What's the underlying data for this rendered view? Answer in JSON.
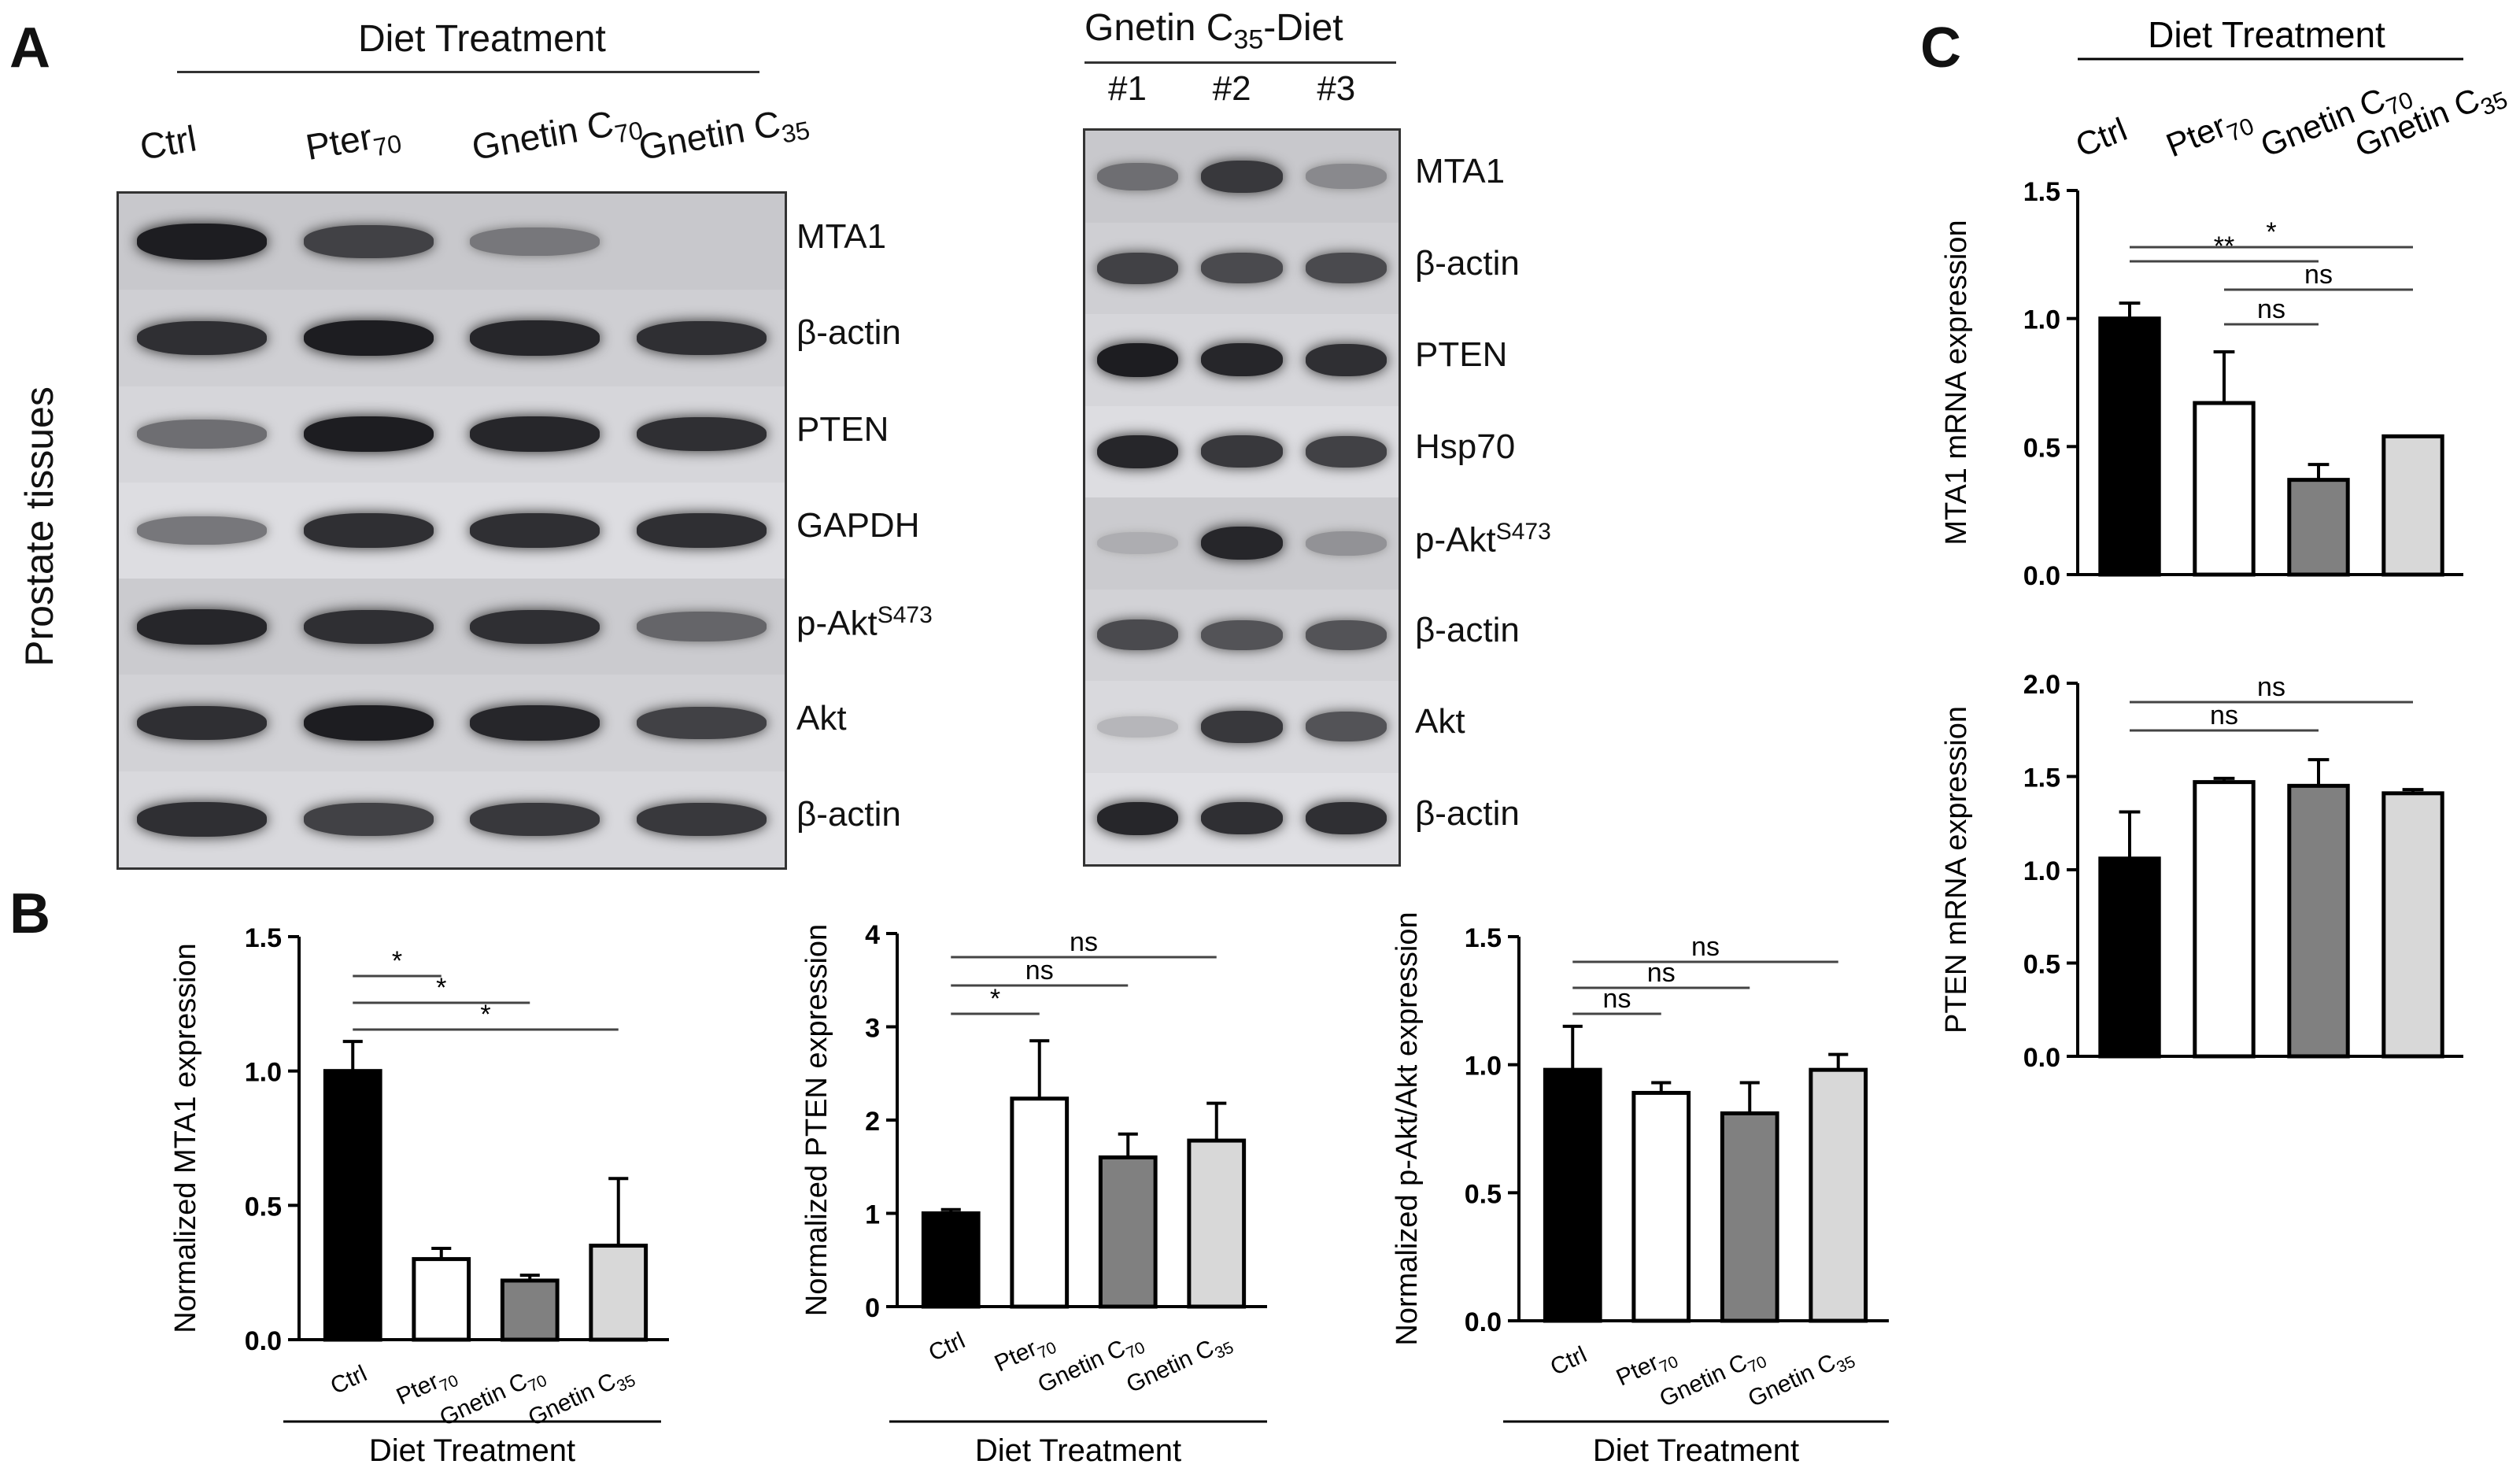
{
  "panels": {
    "a": "A",
    "b": "B",
    "c": "C"
  },
  "panel_a": {
    "header": "Diet Treatment",
    "side_label": "Prostate tissues",
    "lanes": [
      {
        "base": "Ctrl",
        "sub": ""
      },
      {
        "base": "Pter",
        "sub": "70"
      },
      {
        "base": "Gnetin C",
        "sub": "70"
      },
      {
        "base": "Gnetin C",
        "sub": "35"
      }
    ],
    "rows": [
      {
        "base": "MTA1",
        "sup": ""
      },
      {
        "base": "β-actin",
        "sup": ""
      },
      {
        "base": "PTEN",
        "sup": ""
      },
      {
        "base": "GAPDH",
        "sup": ""
      },
      {
        "base": "p-Akt",
        "sup": "S473"
      },
      {
        "base": "Akt",
        "sup": ""
      },
      {
        "base": "β-actin",
        "sup": ""
      }
    ],
    "band_intensity": [
      [
        0.95,
        0.75,
        0.45,
        0.0
      ],
      [
        0.85,
        0.95,
        0.9,
        0.85
      ],
      [
        0.5,
        0.95,
        0.9,
        0.85
      ],
      [
        0.45,
        0.85,
        0.85,
        0.85
      ],
      [
        0.9,
        0.85,
        0.85,
        0.55
      ],
      [
        0.85,
        0.95,
        0.9,
        0.75
      ],
      [
        0.85,
        0.75,
        0.8,
        0.8
      ]
    ]
  },
  "panel_a2": {
    "header_base": "Gnetin C",
    "header_sub": "35",
    "header_tail": "-Diet",
    "lanes": [
      "#1",
      "#2",
      "#3"
    ],
    "rows": [
      {
        "base": "MTA1",
        "sup": ""
      },
      {
        "base": "β-actin",
        "sup": ""
      },
      {
        "base": "PTEN",
        "sup": ""
      },
      {
        "base": "Hsp70",
        "sup": ""
      },
      {
        "base": "p-Akt",
        "sup": "S473"
      },
      {
        "base": "β-actin",
        "sup": ""
      },
      {
        "base": "Akt",
        "sup": ""
      },
      {
        "base": "β-actin",
        "sup": ""
      }
    ],
    "band_intensity": [
      [
        0.5,
        0.8,
        0.35
      ],
      [
        0.75,
        0.7,
        0.7
      ],
      [
        0.95,
        0.9,
        0.85
      ],
      [
        0.9,
        0.8,
        0.75
      ],
      [
        0.15,
        0.9,
        0.3
      ],
      [
        0.7,
        0.65,
        0.65
      ],
      [
        0.1,
        0.8,
        0.65
      ],
      [
        0.9,
        0.85,
        0.85
      ]
    ]
  },
  "chart_data": [
    {
      "type": "bar",
      "panel": "B",
      "categories": [
        "Ctrl",
        "Pter70",
        "Gnetin C70",
        "Gnetin C35"
      ],
      "values": [
        1.0,
        0.3,
        0.22,
        0.35
      ],
      "errors": [
        0.11,
        0.04,
        0.02,
        0.25
      ],
      "colors": [
        "#000000",
        "#ffffff",
        "#808080",
        "#d8d8d8"
      ],
      "ylabel": "Normalized  MTA1 expression",
      "xlabel": "Diet Treatment",
      "ylim": [
        0,
        1.5
      ],
      "yticks": [
        "0.0",
        "0.5",
        "1.0",
        "1.5"
      ],
      "comparisons": [
        {
          "from": 0,
          "to": 1,
          "label": "*"
        },
        {
          "from": 0,
          "to": 2,
          "label": "*"
        },
        {
          "from": 0,
          "to": 3,
          "label": "*"
        }
      ]
    },
    {
      "type": "bar",
      "panel": "B",
      "categories": [
        "Ctrl",
        "Pter70",
        "Gnetin C70",
        "Gnetin C35"
      ],
      "values": [
        1.0,
        2.23,
        1.6,
        1.78
      ],
      "errors": [
        0.04,
        0.62,
        0.25,
        0.4
      ],
      "colors": [
        "#000000",
        "#ffffff",
        "#808080",
        "#d8d8d8"
      ],
      "ylabel": "Normalized  PTEN expression",
      "xlabel": "Diet Treatment",
      "ylim": [
        0,
        4
      ],
      "yticks": [
        "0",
        "1",
        "2",
        "3",
        "4"
      ],
      "comparisons": [
        {
          "from": 0,
          "to": 1,
          "label": "*"
        },
        {
          "from": 0,
          "to": 2,
          "label": "ns"
        },
        {
          "from": 0,
          "to": 3,
          "label": "ns"
        }
      ]
    },
    {
      "type": "bar",
      "panel": "B",
      "categories": [
        "Ctrl",
        "Pter70",
        "Gnetin C70",
        "Gnetin C35"
      ],
      "values": [
        0.98,
        0.89,
        0.81,
        0.98
      ],
      "errors": [
        0.17,
        0.04,
        0.12,
        0.06
      ],
      "colors": [
        "#000000",
        "#ffffff",
        "#808080",
        "#d8d8d8"
      ],
      "ylabel": "Normalized p-Akt/Akt expression",
      "xlabel": "Diet Treatment",
      "ylim": [
        0,
        1.5
      ],
      "yticks": [
        "0.0",
        "0.5",
        "1.0",
        "1.5"
      ],
      "comparisons": [
        {
          "from": 0,
          "to": 1,
          "label": "ns"
        },
        {
          "from": 0,
          "to": 2,
          "label": "ns"
        },
        {
          "from": 0,
          "to": 3,
          "label": "ns"
        }
      ]
    },
    {
      "type": "bar",
      "panel": "C",
      "categories": [
        "Ctrl",
        "Pter70",
        "Gnetin C70",
        "Gnetin C35"
      ],
      "values": [
        1.0,
        0.67,
        0.37,
        0.54
      ],
      "errors": [
        0.06,
        0.2,
        0.06,
        0.0
      ],
      "colors": [
        "#000000",
        "#ffffff",
        "#808080",
        "#d8d8d8"
      ],
      "ylabel": "MTA1 mRNA expression",
      "xlabel": "Diet Treatment",
      "ylim": [
        0,
        1.5
      ],
      "yticks": [
        "0.0",
        "0.5",
        "1.0",
        "1.5"
      ],
      "comparisons": [
        {
          "from": 2,
          "to": 1,
          "label": "ns"
        },
        {
          "from": 3,
          "to": 1,
          "label": "ns"
        },
        {
          "from": 0,
          "to": 2,
          "label": "**"
        },
        {
          "from": 0,
          "to": 3,
          "label": "*"
        }
      ]
    },
    {
      "type": "bar",
      "panel": "C",
      "categories": [
        "Ctrl",
        "Pter70",
        "Gnetin C70",
        "Gnetin C35"
      ],
      "values": [
        1.06,
        1.47,
        1.45,
        1.41
      ],
      "errors": [
        0.25,
        0.02,
        0.14,
        0.02
      ],
      "colors": [
        "#000000",
        "#ffffff",
        "#808080",
        "#d8d8d8"
      ],
      "ylabel": "PTEN mRNA expression",
      "xlabel": "",
      "ylim": [
        0,
        2.0
      ],
      "yticks": [
        "0.0",
        "0.5",
        "1.0",
        "1.5",
        "2.0"
      ],
      "comparisons": [
        {
          "from": 0,
          "to": 2,
          "label": "ns"
        },
        {
          "from": 0,
          "to": 3,
          "label": "ns"
        }
      ]
    }
  ]
}
